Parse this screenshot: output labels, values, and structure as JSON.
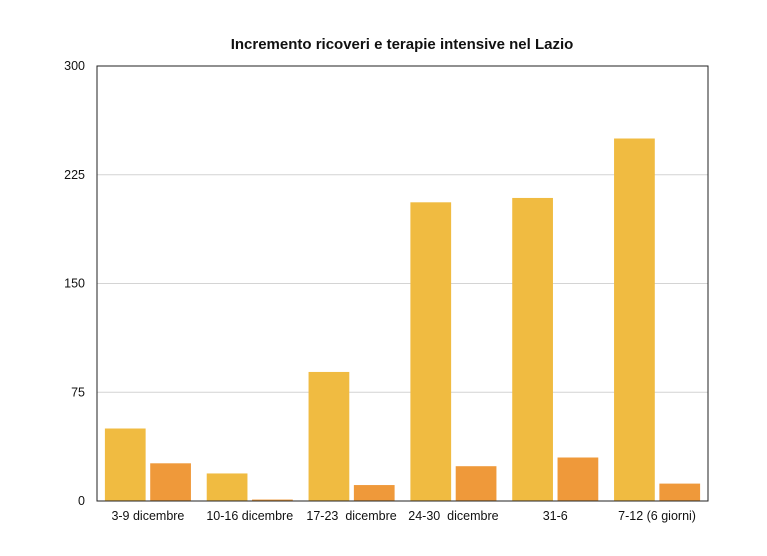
{
  "chart_data": {
    "type": "bar",
    "title": "Incremento ricoveri e terapie intensive nel Lazio",
    "xlabel": "",
    "ylabel": "",
    "categories": [
      "3-9 dicembre",
      "10-16 dicembre",
      "17-23  dicembre",
      "24-30  dicembre",
      "31-6",
      "7-12 (6 giorni)"
    ],
    "series": [
      {
        "values": [
          50,
          19,
          89,
          206,
          209,
          250
        ],
        "color": "#F0BB41"
      },
      {
        "values": [
          26,
          1,
          11,
          24,
          30,
          12
        ],
        "color": "#EF993A"
      }
    ],
    "ylim": [
      0,
      300
    ],
    "yticks": [
      0,
      75,
      150,
      225,
      300
    ],
    "grid": true,
    "legend": "none"
  }
}
